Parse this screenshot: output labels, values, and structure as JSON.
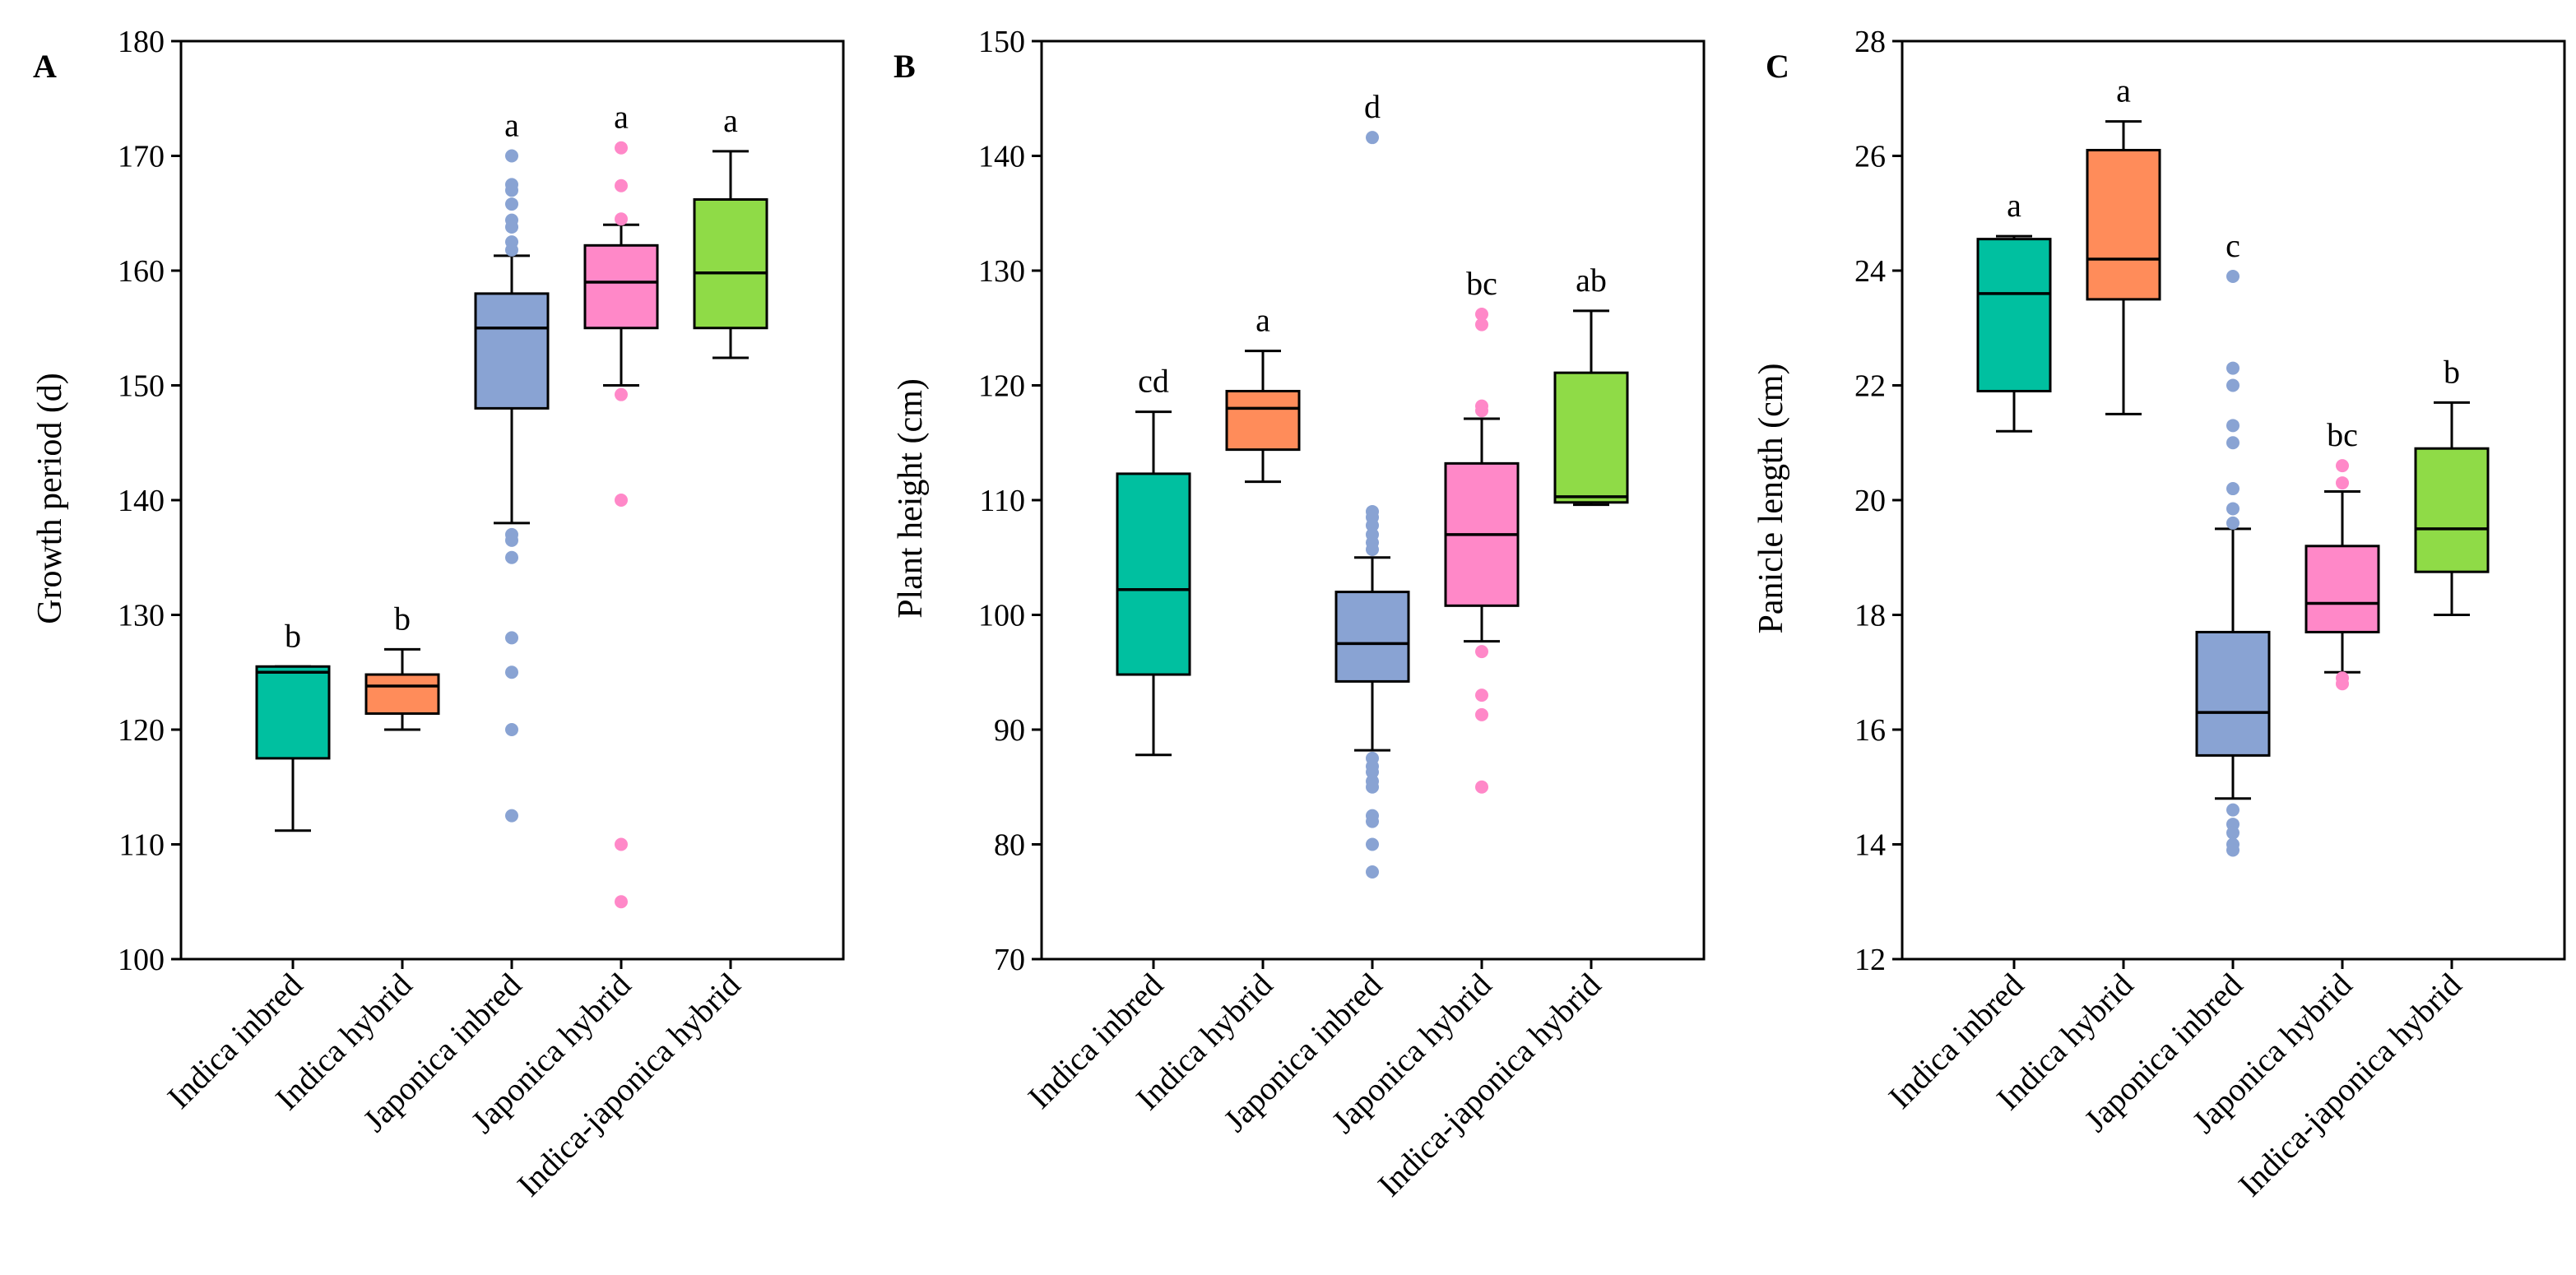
{
  "chart_data": [
    {
      "type": "box",
      "panel": "A",
      "ylabel": "Growth period (d)",
      "xlabel": "",
      "ylim": [
        100,
        180
      ],
      "yticks": [
        100,
        110,
        120,
        130,
        140,
        150,
        160,
        170,
        180
      ],
      "categories": [
        "Indica inbred",
        "Indica hybrid",
        "Japonica inbred",
        "Japonica hybrid",
        "Indica-japonica hybrid"
      ],
      "colors": [
        "#00C0A0",
        "#FF8C5A",
        "#89A3D3",
        "#FF88C8",
        "#8FDB47"
      ],
      "boxes": [
        {
          "q1": 117.5,
          "median": 125.0,
          "q3": 125.5,
          "whisker_low": 111.2,
          "whisker_high": 125.5,
          "outliers": []
        },
        {
          "q1": 121.4,
          "median": 123.8,
          "q3": 124.8,
          "whisker_low": 120.0,
          "whisker_high": 127.0,
          "outliers": []
        },
        {
          "q1": 148.0,
          "median": 155.0,
          "q3": 158.0,
          "whisker_low": 138.0,
          "whisker_high": 161.3,
          "outliers": [
            170.0,
            167.5,
            167.0,
            165.8,
            164.4,
            163.8,
            162.5,
            161.8,
            137.0,
            136.5,
            135.0,
            128.0,
            125.0,
            120.0,
            112.5
          ]
        },
        {
          "q1": 155.0,
          "median": 159.0,
          "q3": 162.2,
          "whisker_low": 150.0,
          "whisker_high": 164.0,
          "outliers": [
            170.7,
            167.4,
            164.5,
            149.2,
            140.0,
            110.0,
            105.0
          ]
        },
        {
          "q1": 155.0,
          "median": 159.8,
          "q3": 166.2,
          "whisker_low": 152.4,
          "whisker_high": 170.4,
          "outliers": []
        }
      ],
      "significance": [
        "b",
        "b",
        "a",
        "a",
        "a"
      ]
    },
    {
      "type": "box",
      "panel": "B",
      "ylabel": "Plant height (cm)",
      "xlabel": "",
      "ylim": [
        70,
        150
      ],
      "yticks": [
        70,
        80,
        90,
        100,
        110,
        120,
        130,
        140,
        150
      ],
      "categories": [
        "Indica inbred",
        "Indica hybrid",
        "Japonica inbred",
        "Japonica hybrid",
        "Indica-japonica hybrid"
      ],
      "colors": [
        "#00C0A0",
        "#FF8C5A",
        "#89A3D3",
        "#FF88C8",
        "#8FDB47"
      ],
      "boxes": [
        {
          "q1": 94.8,
          "median": 102.2,
          "q3": 112.3,
          "whisker_low": 87.8,
          "whisker_high": 117.7,
          "outliers": []
        },
        {
          "q1": 114.4,
          "median": 118.0,
          "q3": 119.5,
          "whisker_low": 111.6,
          "whisker_high": 123.0,
          "outliers": []
        },
        {
          "q1": 94.2,
          "median": 97.5,
          "q3": 102.0,
          "whisker_low": 88.2,
          "whisker_high": 105.0,
          "outliers": [
            141.6,
            109.0,
            108.5,
            107.8,
            107.0,
            106.3,
            105.7,
            87.5,
            86.8,
            86.3,
            85.5,
            85.0,
            82.5,
            82.0,
            80.0,
            77.6
          ]
        },
        {
          "q1": 100.8,
          "median": 107.0,
          "q3": 113.2,
          "whisker_low": 97.7,
          "whisker_high": 117.1,
          "outliers": [
            126.2,
            125.3,
            118.2,
            117.8,
            96.8,
            93.0,
            91.3,
            85.0
          ]
        },
        {
          "q1": 109.8,
          "median": 110.3,
          "q3": 121.1,
          "whisker_low": 109.6,
          "whisker_high": 126.5,
          "outliers": []
        }
      ],
      "significance": [
        "cd",
        "a",
        "d",
        "bc",
        "ab"
      ]
    },
    {
      "type": "box",
      "panel": "C",
      "ylabel": "Panicle length (cm)",
      "xlabel": "",
      "ylim": [
        12,
        28
      ],
      "yticks": [
        12,
        14,
        16,
        18,
        20,
        22,
        24,
        26,
        28
      ],
      "categories": [
        "Indica inbred",
        "Indica hybrid",
        "Japonica inbred",
        "Japonica hybrid",
        "Indica-japonica hybrid"
      ],
      "colors": [
        "#00C0A0",
        "#FF8C5A",
        "#89A3D3",
        "#FF88C8",
        "#8FDB47"
      ],
      "boxes": [
        {
          "q1": 21.9,
          "median": 23.6,
          "q3": 24.55,
          "whisker_low": 21.2,
          "whisker_high": 24.6,
          "outliers": []
        },
        {
          "q1": 23.5,
          "median": 24.2,
          "q3": 26.1,
          "whisker_low": 21.5,
          "whisker_high": 26.6,
          "outliers": []
        },
        {
          "q1": 15.55,
          "median": 16.3,
          "q3": 17.7,
          "whisker_low": 14.8,
          "whisker_high": 19.5,
          "outliers": [
            23.9,
            22.3,
            22.0,
            21.3,
            21.0,
            20.2,
            19.85,
            19.6,
            14.6,
            14.35,
            14.2,
            14.0,
            13.9
          ]
        },
        {
          "q1": 17.7,
          "median": 18.2,
          "q3": 19.2,
          "whisker_low": 17.0,
          "whisker_high": 20.15,
          "outliers": [
            20.6,
            20.3,
            16.9,
            16.8
          ]
        },
        {
          "q1": 18.75,
          "median": 19.5,
          "q3": 20.9,
          "whisker_low": 18.0,
          "whisker_high": 21.7,
          "outliers": []
        }
      ],
      "significance": [
        "a",
        "a",
        "c",
        "bc",
        "b"
      ]
    }
  ]
}
